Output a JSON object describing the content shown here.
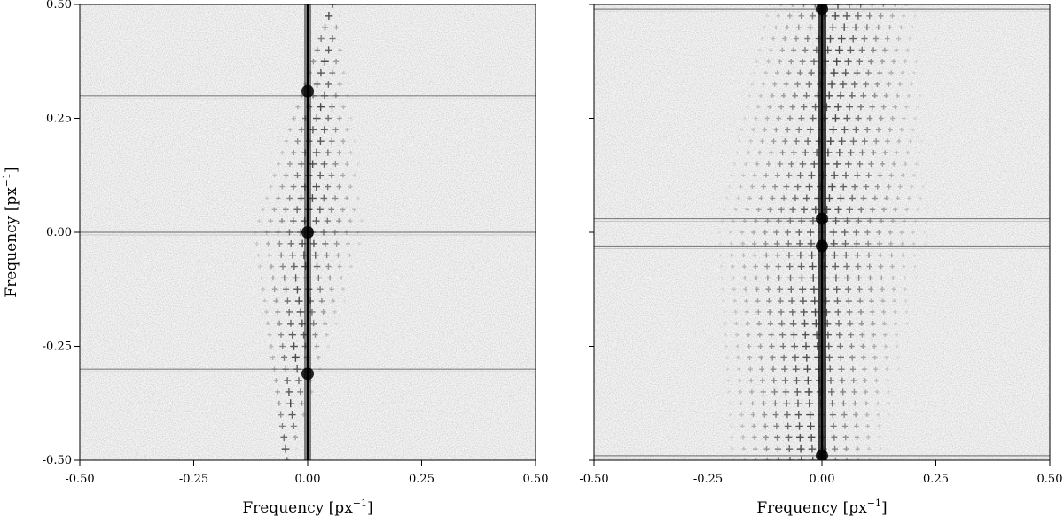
{
  "chart_data": [
    {
      "type": "heatmap",
      "description_kind": "2D Fourier power spectrum image",
      "xlabel": "Frequency [px",
      "xlabel_exponent": "−1",
      "xlabel_close": "]",
      "ylabel": "Frequency [px",
      "ylabel_exponent": "−1",
      "ylabel_close": "]",
      "xlim": [
        -0.5,
        0.5
      ],
      "ylim": [
        -0.5,
        0.5
      ],
      "xticks": [
        -0.5,
        -0.25,
        0.0,
        0.25,
        0.5
      ],
      "yticks": [
        -0.5,
        -0.25,
        0.0,
        0.25,
        0.5
      ],
      "xtick_labels": [
        "-0.50",
        "-0.25",
        "0.00",
        "0.25",
        "0.50"
      ],
      "ytick_labels": [
        "-0.50",
        "-0.25",
        "0.00",
        "0.25",
        "0.50"
      ],
      "colormap": "grayscale (white low, black high)",
      "features": {
        "vertical_ridge_x": 0.0,
        "horizontal_lines_y": [
          0.3,
          0.0,
          -0.3
        ],
        "peaks": [
          [
            0.0,
            0.31
          ],
          [
            0.0,
            0.0
          ],
          [
            0.0,
            -0.31
          ]
        ],
        "lattice_shear": 0.1,
        "lattice_spacing": 0.025
      }
    },
    {
      "type": "heatmap",
      "description_kind": "2D Fourier power spectrum image",
      "xlabel": "Frequency [px",
      "xlabel_exponent": "−1",
      "xlabel_close": "]",
      "ylabel": "",
      "xlim": [
        -0.5,
        0.5
      ],
      "ylim": [
        -0.5,
        0.5
      ],
      "xticks": [
        -0.5,
        -0.25,
        0.0,
        0.25,
        0.5
      ],
      "yticks": [
        -0.5,
        -0.25,
        0.0,
        0.25,
        0.5
      ],
      "xtick_labels": [
        "-0.50",
        "-0.25",
        "0.00",
        "0.25",
        "0.50"
      ],
      "ytick_labels": [],
      "colormap": "grayscale (white low, black high)",
      "features": {
        "vertical_ridge_x": 0.0,
        "horizontal_lines_y": [
          0.49,
          0.03,
          -0.03,
          -0.49
        ],
        "peaks": [
          [
            0.0,
            0.49
          ],
          [
            0.0,
            0.03
          ],
          [
            0.0,
            -0.03
          ],
          [
            0.0,
            -0.49
          ]
        ],
        "lattice_shear": 0.08,
        "lattice_spacing": 0.025
      }
    }
  ]
}
